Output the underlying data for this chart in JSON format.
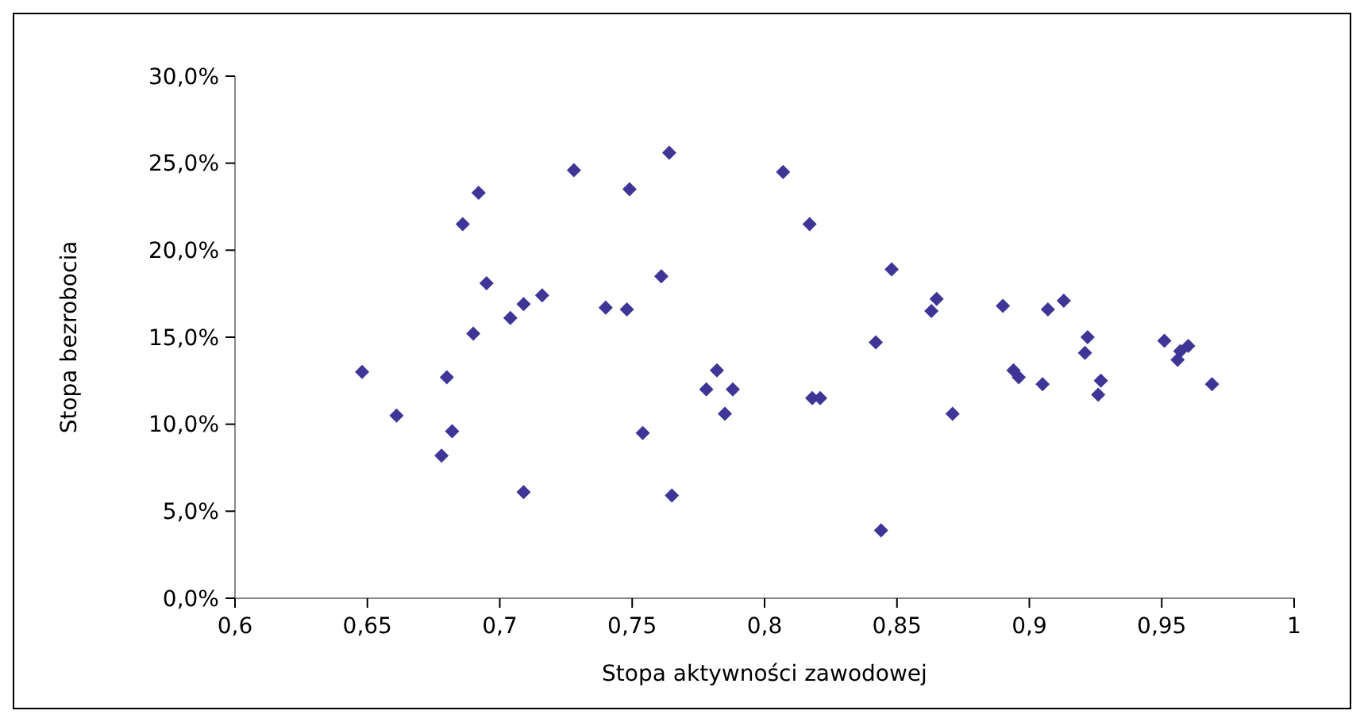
{
  "chart_data": {
    "type": "scatter",
    "xlabel": "Stopa aktywności zawodowej",
    "ylabel": "Stopa bezrobocia",
    "marker": "diamond",
    "grid": false,
    "xlim": [
      0.6,
      1
    ],
    "ylim": [
      0,
      30
    ],
    "xticks": [
      {
        "value": 0.6,
        "label": "0,6"
      },
      {
        "value": 0.65,
        "label": "0,65"
      },
      {
        "value": 0.7,
        "label": "0,7"
      },
      {
        "value": 0.75,
        "label": "0,75"
      },
      {
        "value": 0.8,
        "label": "0,8"
      },
      {
        "value": 0.85,
        "label": "0,85"
      },
      {
        "value": 0.9,
        "label": "0,9"
      },
      {
        "value": 0.95,
        "label": "0,95"
      },
      {
        "value": 1,
        "label": "1"
      }
    ],
    "yticks": [
      {
        "value": 0,
        "label": "0,0%"
      },
      {
        "value": 5,
        "label": "5,0%"
      },
      {
        "value": 10,
        "label": "10,0%"
      },
      {
        "value": 15,
        "label": "15,0%"
      },
      {
        "value": 20,
        "label": "20,0%"
      },
      {
        "value": 25,
        "label": "25,0%"
      },
      {
        "value": 30,
        "label": "30,0%"
      }
    ],
    "series": [
      {
        "color": "#3f3596",
        "x": [
          0.648,
          0.661,
          0.678,
          0.682,
          0.68,
          0.69,
          0.695,
          0.692,
          0.686,
          0.704,
          0.709,
          0.716,
          0.728,
          0.74,
          0.709,
          0.748,
          0.749,
          0.764,
          0.761,
          0.754,
          0.765,
          0.782,
          0.778,
          0.788,
          0.785,
          0.807,
          0.817,
          0.818,
          0.821,
          0.848,
          0.842,
          0.844,
          0.865,
          0.863,
          0.871,
          0.89,
          0.907,
          0.913,
          0.922,
          0.921,
          0.894,
          0.896,
          0.905,
          0.927,
          0.926,
          0.951,
          0.96,
          0.957,
          0.956,
          0.969
        ],
        "values": [
          13.0,
          10.5,
          8.2,
          9.6,
          12.7,
          15.2,
          18.1,
          23.3,
          21.5,
          16.1,
          16.9,
          17.4,
          24.6,
          16.7,
          6.1,
          16.6,
          23.5,
          25.6,
          18.5,
          9.5,
          5.9,
          13.1,
          12.0,
          12.0,
          10.6,
          24.5,
          21.5,
          11.5,
          11.5,
          18.9,
          14.7,
          3.9,
          17.2,
          16.5,
          10.6,
          16.8,
          16.6,
          17.1,
          15.0,
          14.1,
          13.1,
          12.7,
          12.3,
          12.5,
          11.7,
          14.8,
          14.5,
          14.2,
          13.7,
          12.3
        ]
      }
    ]
  }
}
